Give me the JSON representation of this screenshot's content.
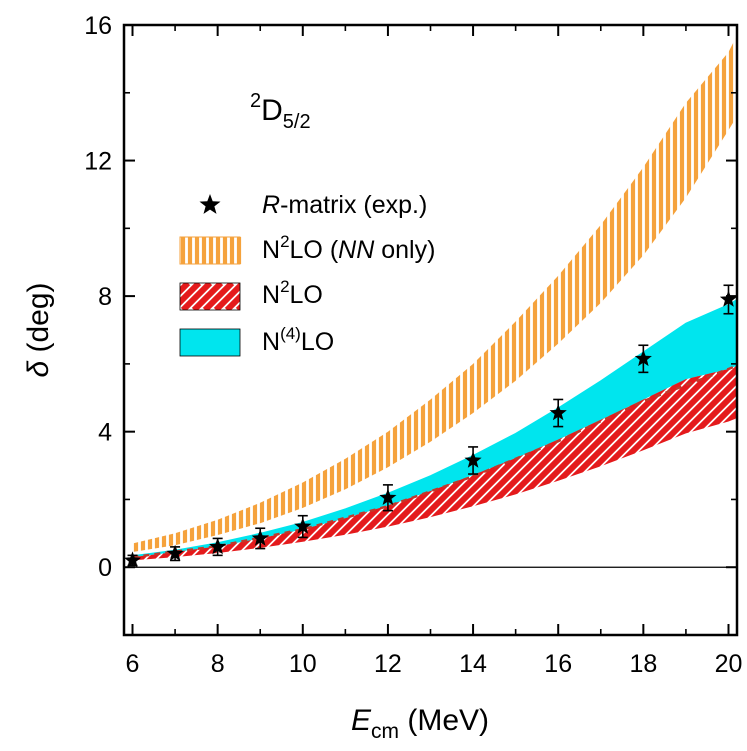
{
  "chart_data": {
    "type": "line",
    "panel_label": {
      "main": "D",
      "pre_sup": "2",
      "sub": "5/2"
    },
    "xlabel": {
      "main": "E",
      "sub": "cm",
      "rest": " (MeV)"
    },
    "ylabel": {
      "symbol": "δ",
      "rest": " (deg)"
    },
    "xlim": [
      5.8,
      20.2
    ],
    "ylim": [
      -2,
      16
    ],
    "xticks": [
      6,
      8,
      10,
      12,
      14,
      16,
      18,
      20
    ],
    "yticks": [
      0,
      4,
      8,
      12,
      16
    ],
    "legend_position": "upper-left",
    "colors": {
      "nn_only": "#f5a23c",
      "n2lo": "#e41a1c",
      "n4lo": "#00e5ee",
      "exp": "#000000"
    },
    "series": [
      {
        "name_parts": {
          "pre": "N",
          "sup": "2",
          "post": "LO (",
          "italic": "NN",
          "tail": " only)"
        },
        "kind": "band",
        "x": [
          6,
          7,
          8,
          9,
          10,
          11,
          12,
          13,
          14,
          15,
          16,
          17,
          18,
          19,
          20,
          20.2
        ],
        "low": [
          0.45,
          0.65,
          0.95,
          1.3,
          1.75,
          2.3,
          2.95,
          3.7,
          4.55,
          5.5,
          6.6,
          7.8,
          9.2,
          10.9,
          12.9,
          13.3
        ],
        "high": [
          0.7,
          1.0,
          1.4,
          1.9,
          2.5,
          3.2,
          4.0,
          4.95,
          6.0,
          7.25,
          8.6,
          10.1,
          11.8,
          13.7,
          15.2,
          15.7
        ]
      },
      {
        "name_parts": {
          "pre": "N",
          "sup": "2",
          "post": "LO",
          "italic": "",
          "tail": ""
        },
        "kind": "band",
        "x": [
          6,
          7,
          8,
          9,
          10,
          11,
          12,
          13,
          14,
          15,
          16,
          17,
          18,
          19,
          20,
          20.2
        ],
        "low": [
          0.2,
          0.3,
          0.42,
          0.57,
          0.75,
          0.96,
          1.2,
          1.48,
          1.8,
          2.15,
          2.55,
          2.98,
          3.45,
          3.95,
          4.3,
          4.4
        ],
        "high": [
          0.3,
          0.45,
          0.62,
          0.85,
          1.12,
          1.45,
          1.82,
          2.25,
          2.72,
          3.22,
          3.77,
          4.35,
          4.95,
          5.55,
          5.85,
          5.95
        ]
      },
      {
        "name_parts": {
          "pre": "N",
          "sup": "(4)",
          "post": "LO",
          "italic": "",
          "tail": ""
        },
        "kind": "band",
        "x": [
          6,
          7,
          8,
          9,
          10,
          11,
          12,
          13,
          14,
          15,
          16,
          17,
          18,
          19,
          20,
          20.2
        ],
        "low": [
          0.3,
          0.44,
          0.62,
          0.84,
          1.1,
          1.42,
          1.78,
          2.2,
          2.66,
          3.15,
          3.7,
          4.26,
          4.85,
          5.45,
          5.85,
          5.95
        ],
        "high": [
          0.34,
          0.5,
          0.72,
          1.0,
          1.32,
          1.72,
          2.18,
          2.7,
          3.3,
          3.95,
          4.7,
          5.5,
          6.35,
          7.2,
          7.75,
          7.9
        ]
      }
    ],
    "dashed_line": {
      "x": [
        6,
        8,
        10,
        12,
        14,
        16,
        18,
        20,
        20.2
      ],
      "y": [
        0.3,
        0.62,
        1.12,
        1.8,
        2.68,
        3.72,
        4.9,
        5.85,
        5.95
      ],
      "color": "#c0392b"
    },
    "experimental": {
      "name_parts": {
        "italic": "R",
        "rest": "-matrix (exp.)"
      },
      "x": [
        6,
        7,
        8,
        9,
        10,
        12,
        14,
        16,
        18,
        20
      ],
      "y": [
        0.2,
        0.4,
        0.6,
        0.85,
        1.2,
        2.05,
        3.15,
        4.55,
        6.15,
        7.9
      ],
      "err": [
        0.15,
        0.2,
        0.25,
        0.3,
        0.32,
        0.38,
        0.4,
        0.4,
        0.4,
        0.42
      ]
    }
  }
}
